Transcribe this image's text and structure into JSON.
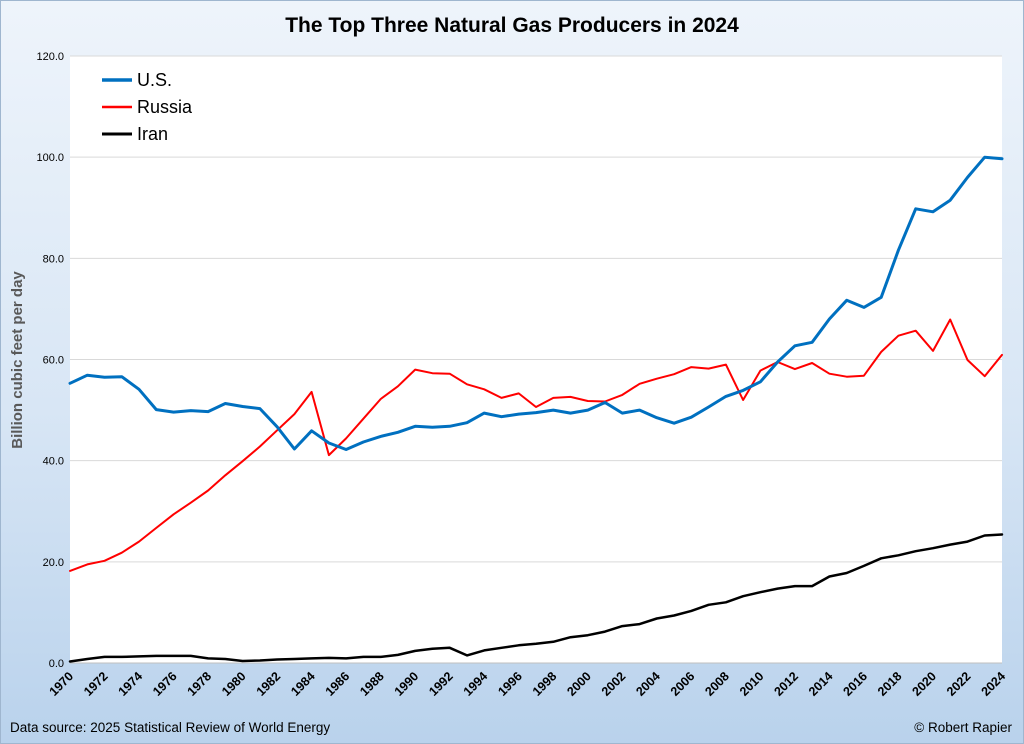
{
  "source_text": "Data source: 2025 Statistical Review of World Energy",
  "credit_text": "© Robert Rapier",
  "colors": {
    "us": "#0070C0",
    "russia": "#FF0000",
    "iran": "#000000",
    "grid": "#D9D9D9"
  },
  "chart_data": {
    "type": "line",
    "title": "The Top Three Natural Gas Producers in 2024",
    "xlabel": "",
    "ylabel": "Billion cubic feet per day",
    "ylim": [
      0,
      120
    ],
    "yticks": [
      "0.0",
      "20.0",
      "40.0",
      "60.0",
      "80.0",
      "100.0",
      "120.0"
    ],
    "xticks": [
      "1970",
      "1972",
      "1974",
      "1976",
      "1978",
      "1980",
      "1982",
      "1984",
      "1986",
      "1988",
      "1990",
      "1992",
      "1994",
      "1996",
      "1998",
      "2000",
      "2002",
      "2004",
      "2006",
      "2008",
      "2010",
      "2012",
      "2014",
      "2016",
      "2018",
      "2020",
      "2022",
      "2024"
    ],
    "x": [
      1970,
      1971,
      1972,
      1973,
      1974,
      1975,
      1976,
      1977,
      1978,
      1979,
      1980,
      1981,
      1982,
      1983,
      1984,
      1985,
      1986,
      1987,
      1988,
      1989,
      1990,
      1991,
      1992,
      1993,
      1994,
      1995,
      1996,
      1997,
      1998,
      1999,
      2000,
      2001,
      2002,
      2003,
      2004,
      2005,
      2006,
      2007,
      2008,
      2009,
      2010,
      2011,
      2012,
      2013,
      2014,
      2015,
      2016,
      2017,
      2018,
      2019,
      2020,
      2021,
      2022,
      2023,
      2024
    ],
    "legend_position": "top-left",
    "series": [
      {
        "name": "U.S.",
        "color": "#0070C0",
        "width": 3,
        "values": [
          55.3,
          56.9,
          56.5,
          56.6,
          54.1,
          50.1,
          49.6,
          49.9,
          49.7,
          51.3,
          50.7,
          50.3,
          46.7,
          42.3,
          45.9,
          43.5,
          42.2,
          43.7,
          44.8,
          45.6,
          46.8,
          46.6,
          46.8,
          47.5,
          49.4,
          48.7,
          49.2,
          49.5,
          50.0,
          49.4,
          50.0,
          51.5,
          49.4,
          50.0,
          48.5,
          47.4,
          48.6,
          50.6,
          52.7,
          53.9,
          55.6,
          59.5,
          62.7,
          63.4,
          68.0,
          71.7,
          70.3,
          72.3,
          81.6,
          89.8,
          89.2,
          91.5,
          96.0,
          100.0,
          99.7
        ]
      },
      {
        "name": "Russia",
        "color": "#FF0000",
        "width": 2,
        "values": [
          18.2,
          19.5,
          20.2,
          21.8,
          24.0,
          26.7,
          29.4,
          31.7,
          34.1,
          37.1,
          39.9,
          42.8,
          46.0,
          49.2,
          53.6,
          41.1,
          44.4,
          48.3,
          52.2,
          54.7,
          58.0,
          57.3,
          57.2,
          55.1,
          54.1,
          52.4,
          53.3,
          50.6,
          52.4,
          52.6,
          51.8,
          51.7,
          53.0,
          55.2,
          56.2,
          57.1,
          58.5,
          58.2,
          59.0,
          52.0,
          57.8,
          59.5,
          58.1,
          59.3,
          57.2,
          56.6,
          56.8,
          61.5,
          64.7,
          65.7,
          61.7,
          67.9,
          59.9,
          56.7,
          60.9
        ]
      },
      {
        "name": "Iran",
        "color": "#000000",
        "width": 2.5,
        "values": [
          0.3,
          0.8,
          1.2,
          1.2,
          1.3,
          1.4,
          1.4,
          1.4,
          0.9,
          0.8,
          0.4,
          0.5,
          0.7,
          0.8,
          0.9,
          1.0,
          0.9,
          1.2,
          1.2,
          1.6,
          2.4,
          2.8,
          3.0,
          1.5,
          2.5,
          3.0,
          3.5,
          3.8,
          4.2,
          5.1,
          5.5,
          6.2,
          7.3,
          7.7,
          8.8,
          9.4,
          10.3,
          11.5,
          12.0,
          13.2,
          14.0,
          14.7,
          15.2,
          15.2,
          17.1,
          17.8,
          19.2,
          20.7,
          21.3,
          22.1,
          22.7,
          23.4,
          24.0,
          25.2,
          25.4
        ]
      }
    ]
  }
}
